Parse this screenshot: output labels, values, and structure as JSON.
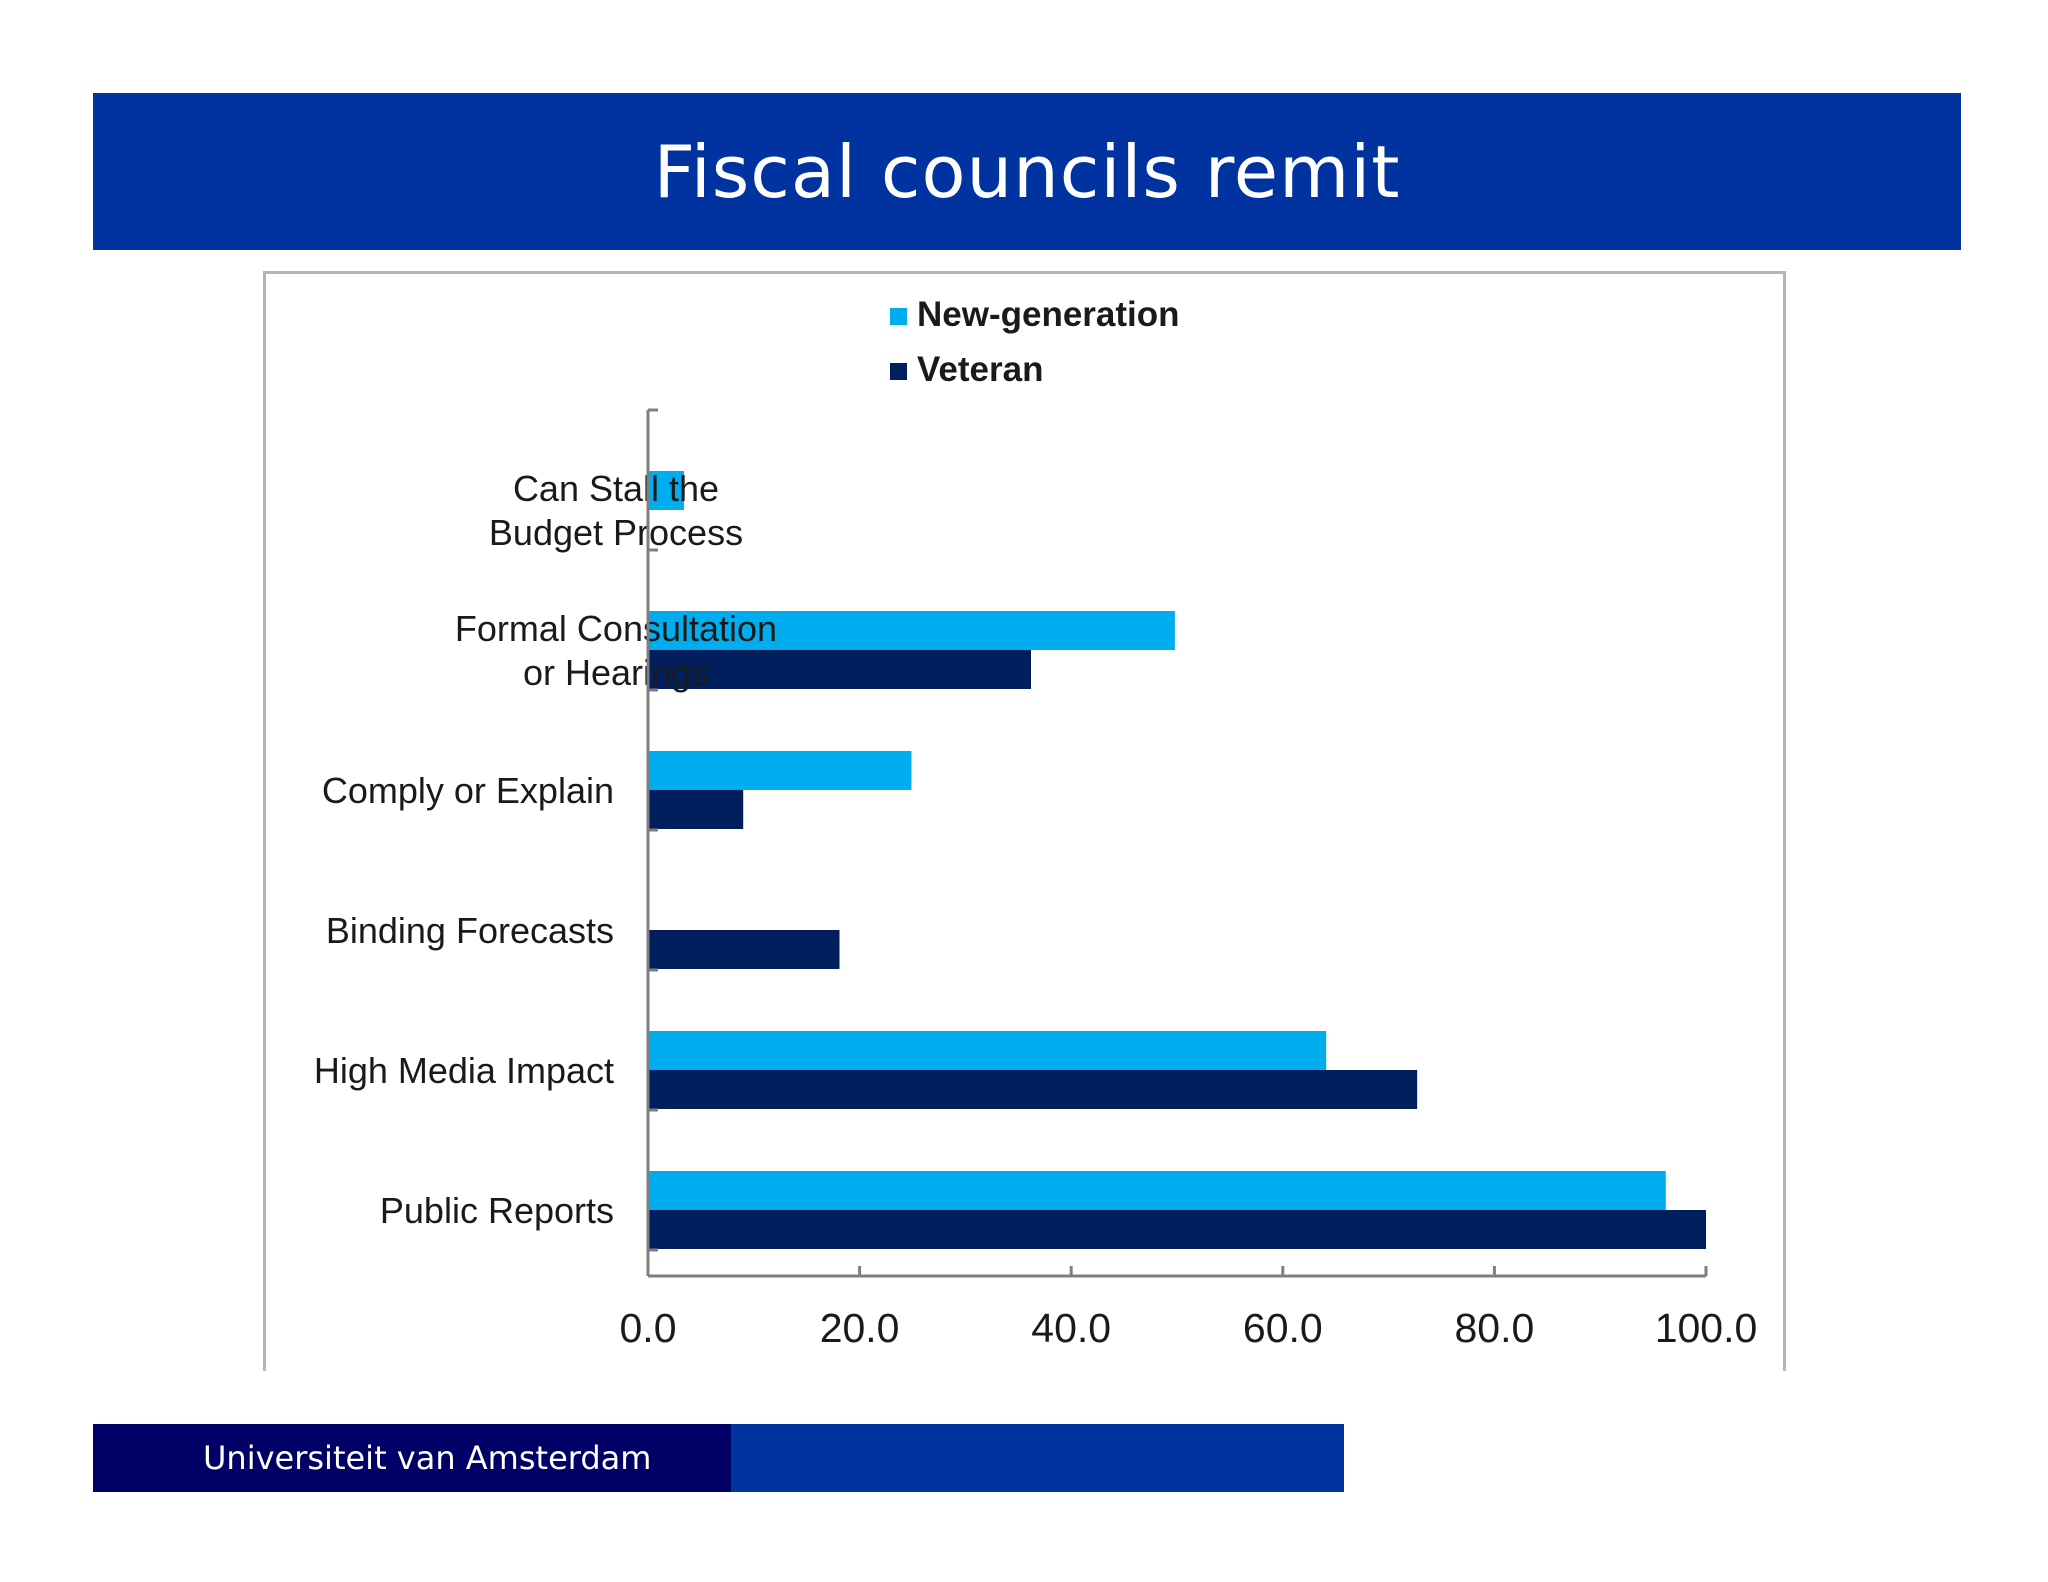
{
  "slide": {
    "title": "Fiscal councils remit",
    "footer": "Universiteit van Amsterdam"
  },
  "colors": {
    "title_bar": "#0033a0",
    "footer_dark": "#000066",
    "new_generation": "#00adee",
    "veteran": "#001f5c"
  },
  "chart_data": {
    "type": "bar",
    "orientation": "horizontal",
    "categories": [
      [
        "Can Stall the",
        "Budget Process"
      ],
      [
        "Formal Consultation",
        "or Hearings"
      ],
      [
        "Comply or Explain"
      ],
      [
        "Binding Forecasts"
      ],
      [
        "High Media Impact"
      ],
      [
        "Public Reports"
      ]
    ],
    "series": [
      {
        "name": "New-generation",
        "color": "#00adee",
        "values": [
          3.4,
          49.8,
          24.9,
          0,
          64.1,
          96.2
        ]
      },
      {
        "name": "Veteran",
        "color": "#001f5c",
        "values": [
          0,
          36.2,
          9.0,
          18.1,
          72.7,
          100.0
        ]
      }
    ],
    "xlim": [
      0,
      100
    ],
    "xticks": [
      0,
      20,
      40,
      60,
      80,
      100
    ],
    "xtick_labels": [
      "0.0",
      "20.0",
      "40.0",
      "60.0",
      "80.0",
      "100.0"
    ],
    "legend_position": "top-center",
    "grid": false
  }
}
